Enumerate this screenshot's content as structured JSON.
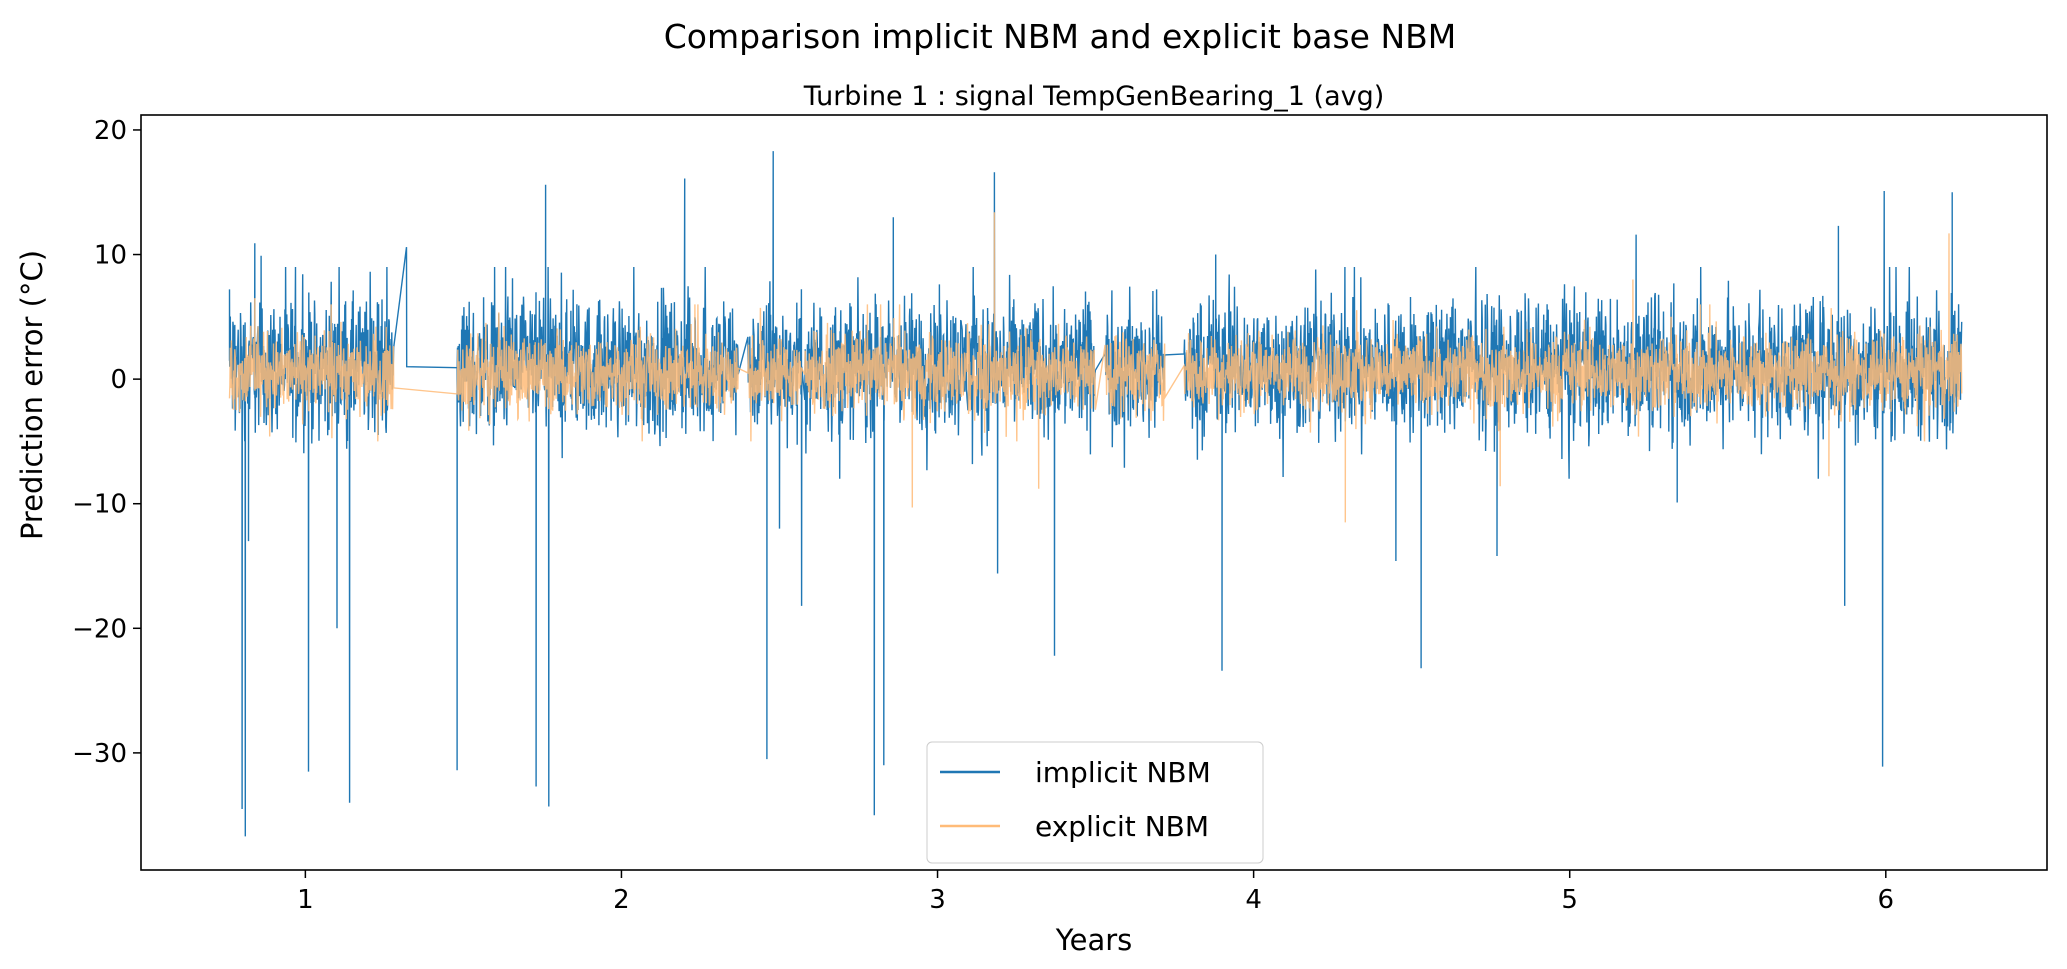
{
  "chart_data": {
    "type": "line",
    "title": "Comparison implicit NBM and explicit base NBM",
    "subtitle": "Turbine 1 : signal TempGenBearing_1 (avg)",
    "xlabel": "Years",
    "ylabel": "Prediction error (°C)",
    "xlim": [
      0.48,
      6.51
    ],
    "ylim": [
      -39.4,
      21.2
    ],
    "xticks": [
      1,
      2,
      3,
      4,
      5,
      6
    ],
    "xtick_labels": [
      "1",
      "2",
      "3",
      "4",
      "5",
      "6"
    ],
    "yticks": [
      20,
      10,
      0,
      -10,
      -20,
      -30
    ],
    "ytick_labels": [
      "20",
      "10",
      "0",
      "−10",
      "−20",
      "−30"
    ],
    "grid": false,
    "legend": {
      "placement": "lower-center",
      "entries": [
        "implicit NBM",
        "explicit NBM"
      ]
    },
    "data_segments": [
      [
        0.76,
        1.0
      ],
      [
        1.0,
        1.28
      ],
      [
        1.48,
        2.37
      ],
      [
        2.4,
        2.57
      ],
      [
        2.58,
        3.5
      ],
      [
        3.53,
        3.72
      ],
      [
        3.78,
        6.24
      ]
    ],
    "series": [
      {
        "name": "implicit NBM",
        "color": "#1f77b4",
        "noise_amplitude": 2.6,
        "mean": 1.0,
        "spikes": [
          [
            0.76,
            7.2
          ],
          [
            0.8,
            -34.5
          ],
          [
            0.81,
            -36.7
          ],
          [
            0.82,
            -13
          ],
          [
            0.84,
            10.9
          ],
          [
            0.86,
            9.9
          ],
          [
            1.01,
            -31.5
          ],
          [
            1.1,
            -20
          ],
          [
            1.14,
            -34
          ],
          [
            1.32,
            10.6
          ],
          [
            1.48,
            -31.4
          ],
          [
            1.73,
            -32.7
          ],
          [
            1.76,
            15.6
          ],
          [
            1.77,
            -34.3
          ],
          [
            2.2,
            16.1
          ],
          [
            2.46,
            -30.5
          ],
          [
            2.48,
            18.3
          ],
          [
            2.5,
            -12
          ],
          [
            2.57,
            -18.2
          ],
          [
            2.8,
            -35
          ],
          [
            2.83,
            -31
          ],
          [
            2.86,
            13
          ],
          [
            3.18,
            16.6
          ],
          [
            3.19,
            -15.6
          ],
          [
            3.37,
            -22.2
          ],
          [
            3.88,
            10
          ],
          [
            3.9,
            -23.4
          ],
          [
            4.45,
            -14.6
          ],
          [
            4.53,
            -23.2
          ],
          [
            4.77,
            -14.2
          ],
          [
            5.21,
            11.6
          ],
          [
            5.34,
            -9.9
          ],
          [
            5.85,
            12.3
          ],
          [
            5.87,
            -18.2
          ],
          [
            5.99,
            -31.1
          ],
          [
            5.995,
            15.1
          ],
          [
            6.21,
            15
          ]
        ]
      },
      {
        "name": "explicit NBM",
        "color": "#ffbb78",
        "noise_amplitude": 1.5,
        "mean": 0.5,
        "spikes": [
          [
            0.84,
            6.5
          ],
          [
            2.92,
            -10.3
          ],
          [
            3.18,
            13.4
          ],
          [
            3.32,
            -8.8
          ],
          [
            4.29,
            -11.5
          ],
          [
            4.78,
            -8.6
          ],
          [
            5.2,
            8
          ],
          [
            5.82,
            -7.8
          ],
          [
            6.2,
            11.7
          ]
        ]
      }
    ]
  }
}
